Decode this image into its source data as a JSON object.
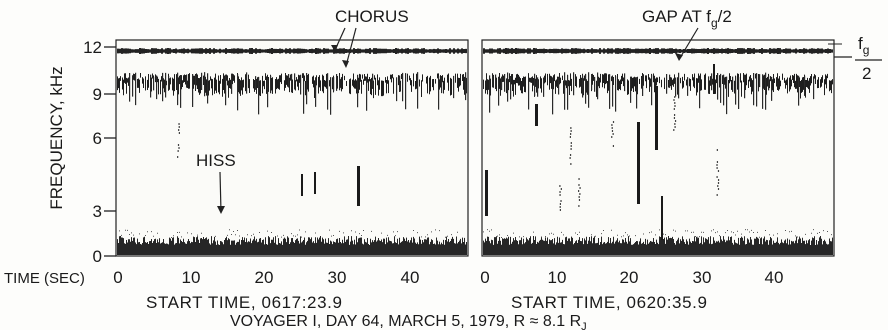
{
  "figure": {
    "y_axis_label": "FREQUENCY, kHz",
    "y_ticks": [
      "0",
      "3",
      "6",
      "9",
      "12"
    ],
    "time_label": "TIME (SEC)",
    "x_ticks": [
      "0",
      "10",
      "20",
      "30",
      "40"
    ],
    "panels": [
      {
        "start_time": "START TIME, 0617:23.9"
      },
      {
        "start_time": "START TIME, 0620:35.9"
      }
    ],
    "annotations": {
      "chorus": "CHORUS",
      "hiss": "HISS",
      "gap_prefix": "GAP AT f",
      "gap_sub": "g",
      "gap_suffix": "/2",
      "fg_numerator": "f",
      "fg_sub": "g",
      "fg_denominator": "2"
    },
    "caption_left": "VOYAGER I,   DAY 64,   MARCH 5, 1979,   R ≈ 8.1 R",
    "caption_sub": "J"
  },
  "chart_data": [
    {
      "type": "heatmap",
      "x_unit": "seconds",
      "y_unit": "kHz",
      "xlim": [
        0,
        48
      ],
      "ylim": [
        0,
        12
      ],
      "start_time": "0617:23.9",
      "features": [
        {
          "label": "CHORUS",
          "approx_freq_khz": [
            8.5,
            10
          ]
        },
        {
          "label": "HISS",
          "approx_freq_khz": [
            0,
            1
          ]
        }
      ]
    },
    {
      "type": "heatmap",
      "x_unit": "seconds",
      "y_unit": "kHz",
      "xlim": [
        0,
        48
      ],
      "ylim": [
        0,
        12
      ],
      "start_time": "0620:35.9"
    }
  ]
}
